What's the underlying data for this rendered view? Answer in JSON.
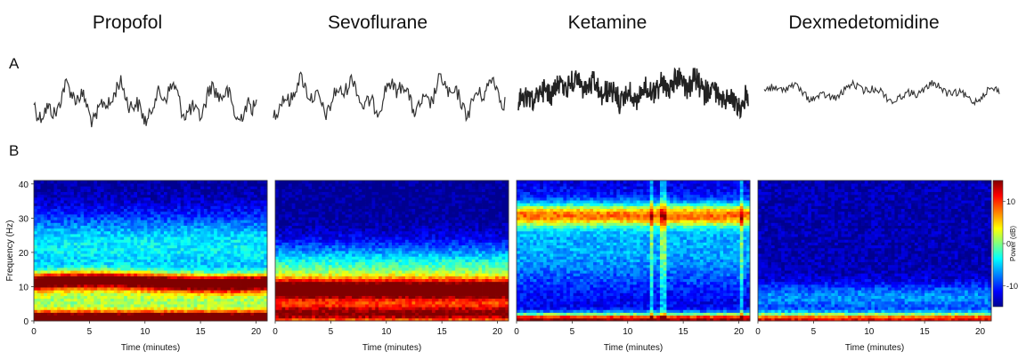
{
  "panel_labels": {
    "a": "A",
    "b": "B"
  },
  "chart_data": [
    {
      "type": "line",
      "panel": "A",
      "series": [
        {
          "name": "Propofol",
          "trace": "slow high-amplitude oscillations"
        },
        {
          "name": "Sevoflurane",
          "trace": "slow high-amplitude oscillations"
        },
        {
          "name": "Ketamine",
          "trace": "fast dense oscillations"
        },
        {
          "name": "Dexmedetomidine",
          "trace": "slow low-amplitude oscillations"
        }
      ]
    },
    {
      "type": "heatmap",
      "panel": "B",
      "xlabel": "Time (minutes)",
      "ylabel": "Frequency (Hz)",
      "xlim": [
        0,
        21
      ],
      "ylim": [
        0,
        41
      ],
      "x_ticks": [
        "0",
        "5",
        "10",
        "15",
        "20"
      ],
      "y_ticks": [
        "0",
        "10",
        "20",
        "30",
        "40"
      ],
      "colorbar": {
        "label": "Power (dB)",
        "ticks": [
          "10",
          "0",
          "-10"
        ],
        "range": [
          -15,
          15
        ]
      },
      "colormap": [
        "#00008f",
        "#0000ff",
        "#00ffff",
        "#ffff00",
        "#ff0000",
        "#800000"
      ],
      "panels": [
        {
          "name": "Propofol",
          "bands": [
            {
              "f": 1.2,
              "power": 14
            },
            {
              "f": 11,
              "power": 10
            },
            {
              "f": 23,
              "power": -4
            }
          ]
        },
        {
          "name": "Sevoflurane",
          "bands": [
            {
              "f": 2.5,
              "power": 13
            },
            {
              "f": 9,
              "power": 11
            },
            {
              "f": 18,
              "power": -2
            }
          ]
        },
        {
          "name": "Ketamine",
          "bands": [
            {
              "f": 1,
              "power": 12
            },
            {
              "f": 31,
              "power": 4
            },
            {
              "f": 22,
              "power": -7
            }
          ]
        },
        {
          "name": "Dexmedetomidine",
          "bands": [
            {
              "f": 1,
              "power": 10
            },
            {
              "f": 6,
              "power": -6
            }
          ]
        }
      ]
    }
  ]
}
